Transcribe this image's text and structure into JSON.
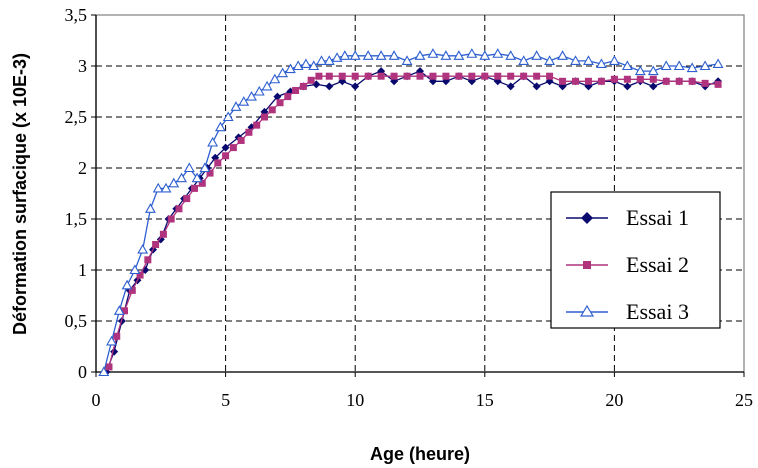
{
  "chart_data": {
    "type": "line",
    "xlabel": "Age (heure)",
    "ylabel": "Déformation surfacique (x 10E-3)",
    "xlim": [
      0,
      25
    ],
    "ylim": [
      0,
      3.5
    ],
    "xticks": [
      "0",
      "5",
      "10",
      "15",
      "20",
      "25"
    ],
    "yticks": [
      "0",
      "0,5",
      "1",
      "1,5",
      "2",
      "2,5",
      "3",
      "3,5"
    ],
    "grid": true,
    "legend_position": "right",
    "series": [
      {
        "name": "Essai 1",
        "color": "#0a0a6e",
        "marker": "diamond",
        "x": [
          0.4,
          0.7,
          1.0,
          1.3,
          1.6,
          1.9,
          2.2,
          2.5,
          2.8,
          3.1,
          3.4,
          3.7,
          4.0,
          4.3,
          4.6,
          5.0,
          5.5,
          6.0,
          6.5,
          7.0,
          7.5,
          8.0,
          8.5,
          9.0,
          9.5,
          10.0,
          10.5,
          11.0,
          11.5,
          12.0,
          12.5,
          13.0,
          13.5,
          14.0,
          14.5,
          15.0,
          15.5,
          16.0,
          16.5,
          17.0,
          17.5,
          18.0,
          18.5,
          19.0,
          19.5,
          20.0,
          20.5,
          21.0,
          21.5,
          22.0,
          22.5,
          23.0,
          23.5,
          24.0
        ],
        "y": [
          0.0,
          0.2,
          0.5,
          0.8,
          0.9,
          1.0,
          1.2,
          1.3,
          1.5,
          1.6,
          1.7,
          1.8,
          1.9,
          2.0,
          2.1,
          2.2,
          2.3,
          2.4,
          2.55,
          2.7,
          2.75,
          2.8,
          2.82,
          2.8,
          2.85,
          2.8,
          2.9,
          2.95,
          2.85,
          2.9,
          2.95,
          2.85,
          2.85,
          2.9,
          2.85,
          2.9,
          2.85,
          2.8,
          2.9,
          2.8,
          2.85,
          2.8,
          2.85,
          2.8,
          2.85,
          2.85,
          2.8,
          2.85,
          2.8,
          2.85,
          2.85,
          2.85,
          2.8,
          2.85
        ]
      },
      {
        "name": "Essai 2",
        "color": "#b0337e",
        "marker": "square",
        "x": [
          0.5,
          0.8,
          1.1,
          1.4,
          1.7,
          2.0,
          2.3,
          2.6,
          2.9,
          3.2,
          3.5,
          3.8,
          4.1,
          4.4,
          4.7,
          5.0,
          5.3,
          5.6,
          5.9,
          6.2,
          6.5,
          6.8,
          7.1,
          7.4,
          7.7,
          8.0,
          8.3,
          8.6,
          9.0,
          9.5,
          10.0,
          10.5,
          11.0,
          11.5,
          12.0,
          12.5,
          13.0,
          13.5,
          14.0,
          14.5,
          15.0,
          15.5,
          16.0,
          16.5,
          17.0,
          17.5,
          18.0,
          18.5,
          19.0,
          19.5,
          20.0,
          20.5,
          21.0,
          21.5,
          22.0,
          22.5,
          23.0,
          23.5,
          24.0
        ],
        "y": [
          0.05,
          0.35,
          0.6,
          0.8,
          0.95,
          1.1,
          1.25,
          1.35,
          1.5,
          1.6,
          1.7,
          1.8,
          1.85,
          1.95,
          2.05,
          2.12,
          2.2,
          2.27,
          2.35,
          2.42,
          2.5,
          2.57,
          2.64,
          2.7,
          2.76,
          2.8,
          2.86,
          2.9,
          2.9,
          2.9,
          2.9,
          2.9,
          2.9,
          2.9,
          2.9,
          2.9,
          2.9,
          2.9,
          2.9,
          2.9,
          2.9,
          2.9,
          2.9,
          2.9,
          2.9,
          2.9,
          2.85,
          2.85,
          2.85,
          2.85,
          2.87,
          2.87,
          2.87,
          2.87,
          2.85,
          2.85,
          2.85,
          2.83,
          2.82
        ]
      },
      {
        "name": "Essai 3",
        "color": "#2d5fcf",
        "marker": "triangle",
        "x": [
          0.3,
          0.6,
          0.9,
          1.2,
          1.5,
          1.8,
          2.1,
          2.4,
          2.7,
          3.0,
          3.3,
          3.6,
          3.9,
          4.2,
          4.5,
          4.8,
          5.1,
          5.4,
          5.7,
          6.0,
          6.3,
          6.6,
          6.9,
          7.2,
          7.5,
          7.8,
          8.1,
          8.4,
          8.7,
          9.0,
          9.3,
          9.6,
          10.0,
          10.5,
          11.0,
          11.5,
          12.0,
          12.5,
          13.0,
          13.5,
          14.0,
          14.5,
          15.0,
          15.5,
          16.0,
          16.5,
          17.0,
          17.5,
          18.0,
          18.5,
          19.0,
          19.5,
          20.0,
          20.5,
          21.0,
          21.5,
          22.0,
          22.5,
          23.0,
          23.5,
          24.0
        ],
        "y": [
          0.0,
          0.3,
          0.6,
          0.85,
          1.0,
          1.2,
          1.6,
          1.8,
          1.8,
          1.85,
          1.9,
          2.0,
          1.9,
          2.0,
          2.25,
          2.4,
          2.5,
          2.6,
          2.65,
          2.7,
          2.75,
          2.8,
          2.87,
          2.93,
          2.97,
          3.0,
          3.02,
          3.0,
          3.05,
          3.05,
          3.08,
          3.1,
          3.1,
          3.1,
          3.1,
          3.1,
          3.05,
          3.1,
          3.12,
          3.1,
          3.1,
          3.12,
          3.1,
          3.12,
          3.1,
          3.05,
          3.1,
          3.05,
          3.1,
          3.05,
          3.05,
          3.02,
          3.05,
          3.0,
          2.95,
          2.95,
          3.0,
          3.0,
          2.98,
          3.0,
          3.02
        ]
      }
    ]
  }
}
